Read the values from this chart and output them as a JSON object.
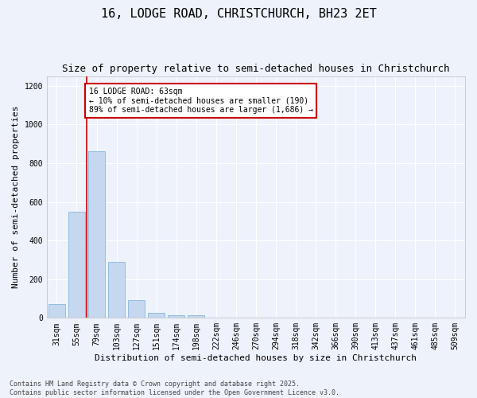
{
  "title": "16, LODGE ROAD, CHRISTCHURCH, BH23 2ET",
  "subtitle": "Size of property relative to semi-detached houses in Christchurch",
  "xlabel": "Distribution of semi-detached houses by size in Christchurch",
  "ylabel": "Number of semi-detached properties",
  "bar_color": "#c5d8f0",
  "bar_edge_color": "#7aadd4",
  "background_color": "#eef2fb",
  "grid_color": "#ffffff",
  "categories": [
    "31sqm",
    "55sqm",
    "79sqm",
    "103sqm",
    "127sqm",
    "151sqm",
    "174sqm",
    "198sqm",
    "222sqm",
    "246sqm",
    "270sqm",
    "294sqm",
    "318sqm",
    "342sqm",
    "366sqm",
    "390sqm",
    "413sqm",
    "437sqm",
    "461sqm",
    "485sqm",
    "509sqm"
  ],
  "values": [
    70,
    548,
    860,
    290,
    90,
    25,
    12,
    15,
    0,
    0,
    0,
    0,
    0,
    0,
    0,
    0,
    0,
    0,
    0,
    0,
    0
  ],
  "ylim": [
    0,
    1250
  ],
  "yticks": [
    0,
    200,
    400,
    600,
    800,
    1000,
    1200
  ],
  "annotation_text": "16 LODGE ROAD: 63sqm\n← 10% of semi-detached houses are smaller (190)\n89% of semi-detached houses are larger (1,686) →",
  "annotation_box_color": "#ffffff",
  "annotation_box_edge_color": "#cc0000",
  "footer": "Contains HM Land Registry data © Crown copyright and database right 2025.\nContains public sector information licensed under the Open Government Licence v3.0.",
  "vline_color": "#cc0000",
  "title_fontsize": 11,
  "subtitle_fontsize": 9,
  "xlabel_fontsize": 8,
  "ylabel_fontsize": 8,
  "tick_fontsize": 7,
  "footer_fontsize": 6,
  "annot_fontsize": 7
}
